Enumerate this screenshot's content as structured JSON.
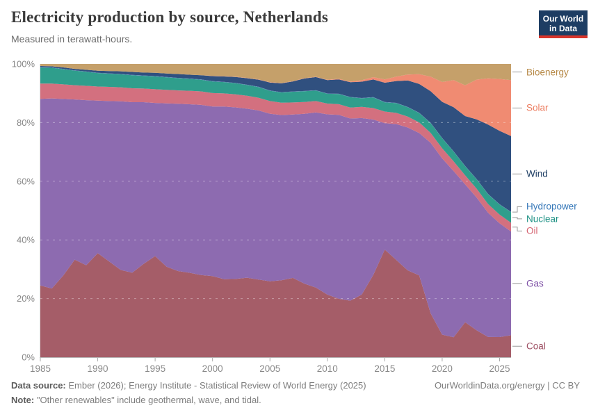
{
  "header": {
    "title": "Electricity production by source, Netherlands",
    "subtitle": "Measured in terawatt-hours.",
    "logo_line1": "Our World",
    "logo_line2": "in Data",
    "logo_bg": "#1d3d63",
    "logo_accent": "#d8352b"
  },
  "axes": {
    "y_ticks": [
      {
        "label": "0%",
        "value": 0
      },
      {
        "label": "20%",
        "value": 20
      },
      {
        "label": "40%",
        "value": 40
      },
      {
        "label": "60%",
        "value": 60
      },
      {
        "label": "80%",
        "value": 80
      },
      {
        "label": "100%",
        "value": 100
      }
    ],
    "x_ticks": [
      {
        "label": "1985",
        "value": 1985
      },
      {
        "label": "1990",
        "value": 1990
      },
      {
        "label": "1995",
        "value": 1995
      },
      {
        "label": "2000",
        "value": 2000
      },
      {
        "label": "2005",
        "value": 2005
      },
      {
        "label": "2010",
        "value": 2010
      },
      {
        "label": "2015",
        "value": 2015
      },
      {
        "label": "2020",
        "value": 2020
      },
      {
        "label": "2025",
        "value": 2025
      }
    ]
  },
  "chart_data": {
    "type": "area",
    "stacked": true,
    "normalized_percent": true,
    "title": "Electricity production by source, Netherlands",
    "unit": "%",
    "ylim": [
      0,
      100
    ],
    "grid": true,
    "legend_position": "right",
    "x": [
      1985,
      1986,
      1987,
      1988,
      1989,
      1990,
      1991,
      1992,
      1993,
      1994,
      1995,
      1996,
      1997,
      1998,
      1999,
      2000,
      2001,
      2002,
      2003,
      2004,
      2005,
      2006,
      2007,
      2008,
      2009,
      2010,
      2011,
      2012,
      2013,
      2014,
      2015,
      2016,
      2017,
      2018,
      2019,
      2020,
      2021,
      2022,
      2023,
      2024,
      2025,
      2026
    ],
    "series": [
      {
        "name": "Coal",
        "color": "#a55d68",
        "label_color": "#9d4e62",
        "values": [
          24.5,
          23.5,
          28.0,
          33.5,
          31.5,
          35.5,
          32.5,
          29.5,
          28.5,
          31.5,
          34.0,
          30.5,
          29.0,
          28.3,
          27.5,
          27.3,
          26.2,
          26.3,
          26.8,
          26.2,
          25.8,
          26.2,
          26.8,
          24.8,
          23.3,
          21.0,
          19.6,
          19.2,
          21.2,
          28.0,
          36.2,
          33.0,
          29.5,
          27.0,
          14.5,
          7.5,
          6.8,
          12.3,
          9.5,
          7.0,
          7.0,
          7.5
        ]
      },
      {
        "name": "Gas",
        "color": "#8d6bb0",
        "label_color": "#7d4fa5",
        "values": [
          63.7,
          65.0,
          60.5,
          55.0,
          56.5,
          52.0,
          54.5,
          57.0,
          57.5,
          54.5,
          51.5,
          55.0,
          56.3,
          56.5,
          57.0,
          57.0,
          58.0,
          57.7,
          57.0,
          57.1,
          56.9,
          56.3,
          55.2,
          57.2,
          58.5,
          60.5,
          61.7,
          61.8,
          59.6,
          52.8,
          42.5,
          46.1,
          48.5,
          47.0,
          56.4,
          58.6,
          56.5,
          48.4,
          46.7,
          43.0,
          39.5,
          35.4
        ]
      },
      {
        "name": "Oil",
        "color": "#d3707f",
        "label_color": "#d4616f",
        "values": [
          5.2,
          5.1,
          5.0,
          4.9,
          4.9,
          4.8,
          4.8,
          4.7,
          4.7,
          4.6,
          4.6,
          4.6,
          4.5,
          4.5,
          4.5,
          4.5,
          4.4,
          4.4,
          4.4,
          4.3,
          4.3,
          4.2,
          4.1,
          4.0,
          3.8,
          3.6,
          3.6,
          3.7,
          3.8,
          3.9,
          3.9,
          3.8,
          3.7,
          3.5,
          3.3,
          3.4,
          3.3,
          3.2,
          3.1,
          3.0,
          3.0,
          3.0
        ]
      },
      {
        "name": "Nuclear",
        "color": "#2f9e8c",
        "label_color": "#1d9184",
        "values": [
          5.5,
          5.4,
          5.2,
          5.0,
          4.8,
          4.6,
          4.5,
          4.4,
          4.4,
          4.3,
          4.3,
          4.2,
          4.1,
          4.0,
          3.9,
          3.9,
          3.8,
          3.7,
          3.6,
          3.6,
          3.5,
          3.5,
          3.6,
          3.6,
          3.5,
          3.3,
          3.4,
          3.5,
          2.9,
          3.6,
          3.1,
          3.3,
          3.2,
          3.1,
          3.2,
          3.3,
          3.3,
          3.2,
          3.3,
          3.4,
          3.5,
          3.6
        ]
      },
      {
        "name": "Hydropower",
        "color": "#4a7fb5",
        "label_color": "#3577b8",
        "values": [
          0.1,
          0.1,
          0.1,
          0.1,
          0.1,
          0.1,
          0.1,
          0.1,
          0.1,
          0.1,
          0.1,
          0.1,
          0.1,
          0.1,
          0.1,
          0.1,
          0.1,
          0.1,
          0.1,
          0.1,
          0.1,
          0.1,
          0.1,
          0.1,
          0.1,
          0.1,
          0.1,
          0.1,
          0.1,
          0.1,
          0.1,
          0.1,
          0.1,
          0.1,
          0.1,
          0.1,
          0.1,
          0.1,
          0.1,
          0.1,
          0.1,
          0.1
        ]
      },
      {
        "name": "Wind",
        "color": "#30507f",
        "label_color": "#1d3d63",
        "values": [
          0.4,
          0.4,
          0.5,
          0.5,
          0.6,
          0.7,
          0.8,
          0.9,
          1.0,
          1.0,
          1.1,
          1.2,
          1.3,
          1.3,
          1.4,
          1.7,
          1.8,
          2.0,
          2.2,
          2.4,
          2.7,
          3.0,
          3.4,
          4.2,
          4.4,
          4.5,
          4.8,
          5.0,
          5.5,
          6.0,
          6.5,
          7.4,
          9.0,
          9.5,
          10.5,
          12.0,
          15.0,
          17.5,
          21.0,
          24.0,
          25.5,
          25.9
        ]
      },
      {
        "name": "Solar",
        "color": "#f08b72",
        "label_color": "#ec7b5e",
        "values": [
          0,
          0,
          0,
          0,
          0,
          0,
          0,
          0,
          0,
          0,
          0,
          0,
          0,
          0,
          0,
          0.1,
          0.1,
          0.1,
          0.1,
          0.1,
          0.1,
          0.1,
          0.1,
          0.1,
          0.1,
          0.1,
          0.2,
          0.2,
          0.5,
          0.8,
          1.1,
          1.5,
          2.0,
          3.2,
          4.8,
          6.6,
          9.2,
          10.8,
          14.0,
          16.0,
          18.0,
          19.1
        ]
      },
      {
        "name": "Bioenergy",
        "color": "#c5a06a",
        "label_color": "#b78a48",
        "values": [
          0.7,
          0.8,
          1.2,
          1.7,
          2.0,
          2.3,
          2.4,
          2.5,
          2.7,
          2.9,
          3.0,
          3.2,
          3.4,
          3.6,
          3.8,
          4.0,
          4.1,
          4.3,
          4.7,
          5.2,
          6.2,
          6.5,
          5.8,
          4.8,
          4.3,
          5.3,
          5.0,
          6.0,
          5.5,
          4.5,
          5.2,
          4.3,
          3.6,
          3.4,
          4.2,
          6.0,
          5.5,
          7.5,
          5.5,
          5.0,
          5.2,
          5.5
        ]
      }
    ]
  },
  "footer": {
    "source_label": "Data source:",
    "source_text": "Ember (2026); Energy Institute - Statistical Review of World Energy (2025)",
    "link_text": "OurWorldinData.org/energy | CC BY",
    "note_label": "Note:",
    "note_text": "\"Other renewables\" include geothermal, wave, and tidal."
  }
}
